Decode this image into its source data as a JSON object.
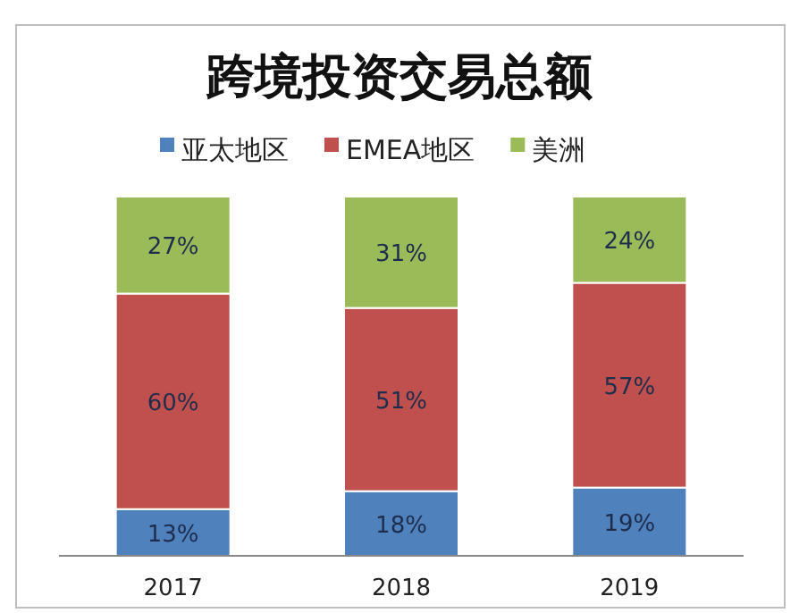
{
  "chart_data": {
    "type": "bar",
    "title": "跨境投资交易总额",
    "stacked": true,
    "legend": "top",
    "categories": [
      "2017",
      "2018",
      "2019"
    ],
    "series": [
      {
        "name": "亚太地区",
        "color": "#4f81bd",
        "values": [
          13,
          18,
          19
        ],
        "value_labels": [
          "13%",
          "18%",
          "19%"
        ]
      },
      {
        "name": "EMEA地区",
        "color": "#c0504d",
        "values": [
          60,
          51,
          57
        ],
        "value_labels": [
          "60%",
          "51%",
          "57%"
        ]
      },
      {
        "name": "美洲",
        "color": "#9bbb59",
        "values": [
          27,
          31,
          24
        ],
        "value_labels": [
          "27%",
          "31%",
          "24%"
        ]
      }
    ]
  }
}
